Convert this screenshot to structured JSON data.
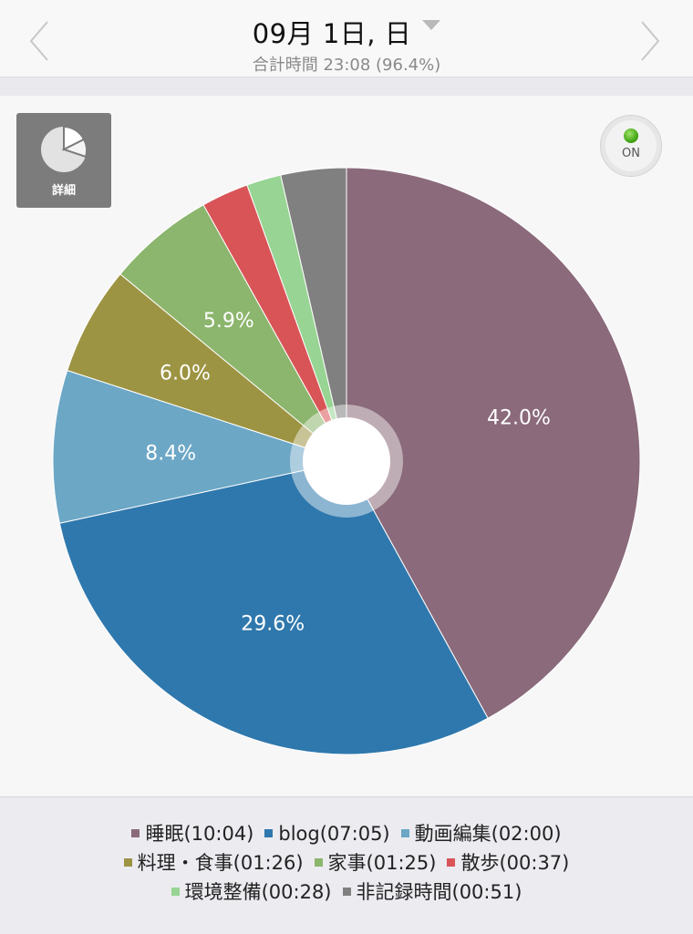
{
  "header": {
    "date_title": "09月 1日, 日",
    "total_time": "合計時間 23:08 (96.4%)"
  },
  "controls": {
    "detail_label": "詳細",
    "toggle_label": "ON"
  },
  "colors": {
    "label_text": "#ffffff",
    "center_ring": "#ffffff"
  },
  "chart_data": {
    "type": "pie",
    "title": "",
    "donut": true,
    "slices": [
      {
        "name": "睡眠",
        "time": "10:04",
        "legend": "睡眠(10:04)",
        "percent": 42.0,
        "label": "42.0%",
        "color": "#8a6a7b"
      },
      {
        "name": "blog",
        "time": "07:05",
        "legend": "blog(07:05)",
        "percent": 29.6,
        "label": "29.6%",
        "color": "#2f78ad"
      },
      {
        "name": "動画編集",
        "time": "02:00",
        "legend": "動画編集(02:00)",
        "percent": 8.4,
        "label": "8.4%",
        "color": "#6ca7c6"
      },
      {
        "name": "料理・食事",
        "time": "01:26",
        "legend": "料理・食事(01:26)",
        "percent": 6.0,
        "label": "6.0%",
        "color": "#9d9443"
      },
      {
        "name": "家事",
        "time": "01:25",
        "legend": "家事(01:25)",
        "percent": 5.9,
        "label": "5.9%",
        "color": "#8cb56d"
      },
      {
        "name": "散歩",
        "time": "00:37",
        "legend": "散歩(00:37)",
        "percent": 2.6,
        "label": "",
        "color": "#d95457"
      },
      {
        "name": "環境整備",
        "time": "00:28",
        "legend": "環境整備(00:28)",
        "percent": 1.9,
        "label": "",
        "color": "#98d493"
      },
      {
        "name": "非記録時間",
        "time": "00:51",
        "legend": "非記録時間(00:51)",
        "percent": 3.6,
        "label": "",
        "color": "#808080"
      }
    ],
    "legend_rows": [
      [
        0,
        1,
        2
      ],
      [
        3,
        4,
        5
      ],
      [
        6,
        7
      ]
    ]
  }
}
